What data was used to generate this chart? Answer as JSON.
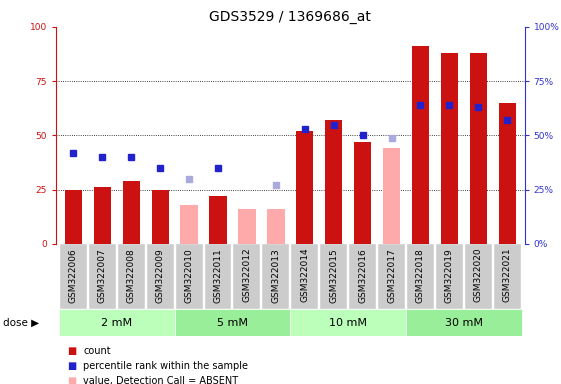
{
  "title": "GDS3529 / 1369686_at",
  "samples": [
    "GSM322006",
    "GSM322007",
    "GSM322008",
    "GSM322009",
    "GSM322010",
    "GSM322011",
    "GSM322012",
    "GSM322013",
    "GSM322014",
    "GSM322015",
    "GSM322016",
    "GSM322017",
    "GSM322018",
    "GSM322019",
    "GSM322020",
    "GSM322021"
  ],
  "count_values": [
    25,
    26,
    29,
    25,
    null,
    22,
    16,
    null,
    52,
    57,
    47,
    null,
    91,
    88,
    88,
    65
  ],
  "rank_values": [
    42,
    40,
    40,
    35,
    null,
    35,
    null,
    null,
    53,
    55,
    50,
    null,
    64,
    64,
    63,
    57
  ],
  "absent_value": [
    null,
    null,
    null,
    null,
    18,
    null,
    16,
    16,
    null,
    null,
    null,
    44,
    null,
    null,
    null,
    null
  ],
  "absent_rank": [
    null,
    null,
    null,
    null,
    30,
    null,
    null,
    27,
    null,
    null,
    null,
    49,
    null,
    null,
    null,
    null
  ],
  "doses": [
    {
      "label": "2 mM",
      "start": 0,
      "end": 4
    },
    {
      "label": "5 mM",
      "start": 4,
      "end": 8
    },
    {
      "label": "10 mM",
      "start": 8,
      "end": 12
    },
    {
      "label": "30 mM",
      "start": 12,
      "end": 16
    }
  ],
  "bar_color_red": "#cc1111",
  "bar_color_pink": "#ffaaaa",
  "dot_color_blue": "#2222cc",
  "dot_color_lightblue": "#aaaadd",
  "ylim": [
    0,
    100
  ],
  "yticks": [
    0,
    25,
    50,
    75,
    100
  ],
  "bg_xtick": "#cccccc",
  "dose_shades": [
    "#bbffbb",
    "#99ee99",
    "#bbffbb",
    "#99ee99"
  ],
  "left_axis_color": "#cc1111",
  "right_axis_color": "#3333cc",
  "title_fontsize": 10,
  "tick_fontsize": 6.5,
  "dose_fontsize": 8,
  "legend_fontsize": 7
}
